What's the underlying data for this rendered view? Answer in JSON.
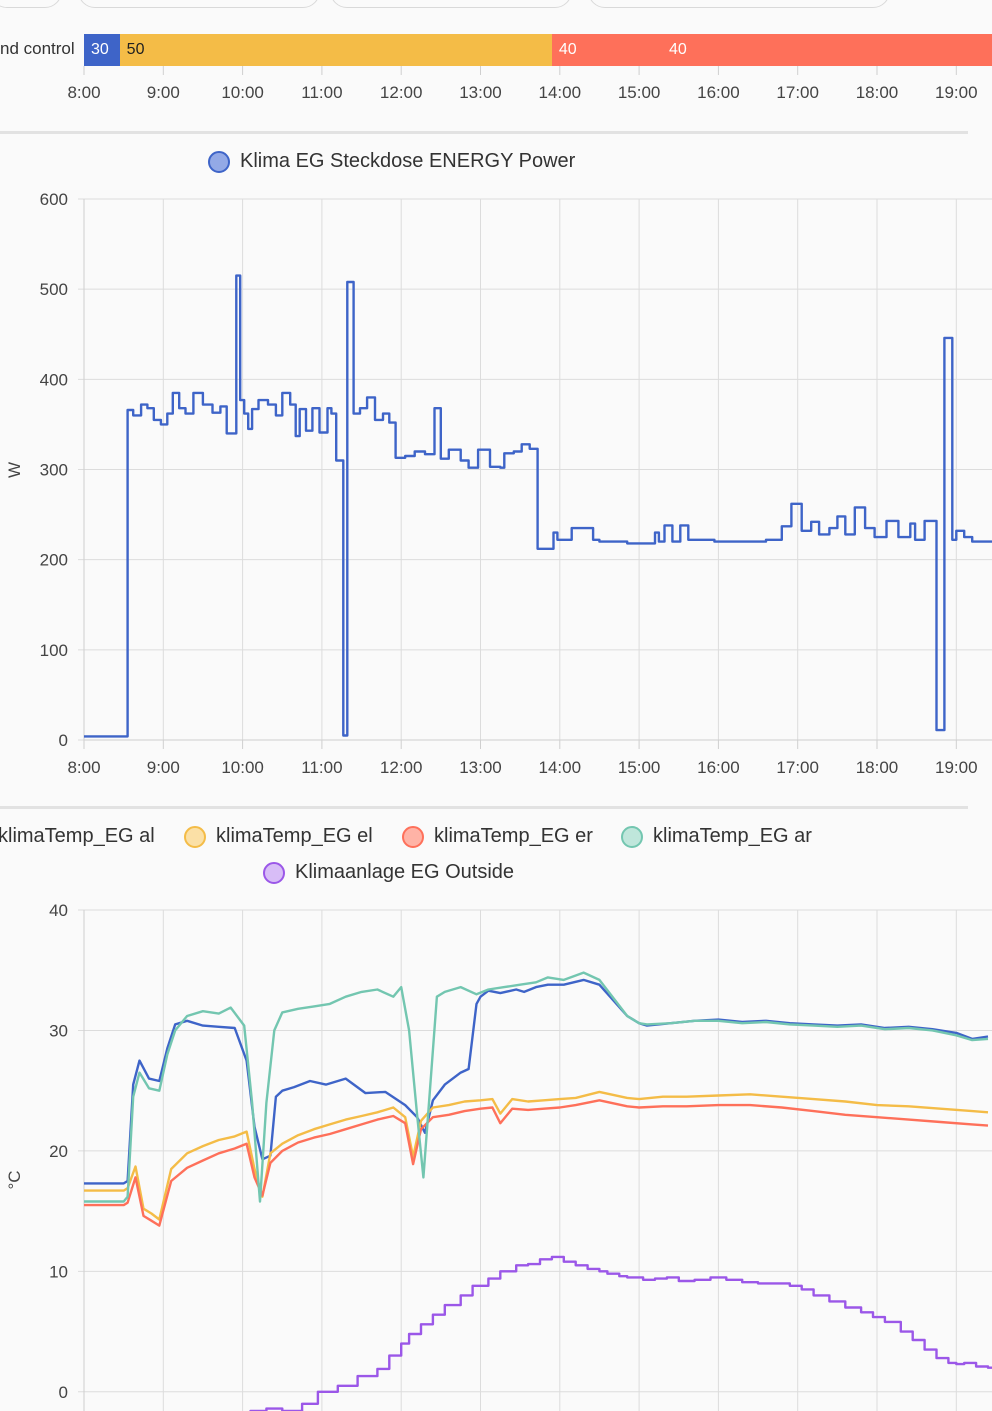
{
  "timeline": {
    "row_label": "nd control",
    "segments": [
      {
        "label": "30",
        "color": "#3e64c8",
        "text_color": "#ffffff",
        "start": "8:00",
        "end": "8:27"
      },
      {
        "label": "50",
        "color": "#f4bc47",
        "text_color": "#212121",
        "start": "8:27",
        "end": "13:54"
      },
      {
        "label": "40",
        "color": "#fe705a",
        "text_color": "#ffffff",
        "start": "13:54",
        "end": "19:25"
      }
    ],
    "extra_label": "40",
    "x_ticks": [
      "8:00",
      "9:00",
      "10:00",
      "11:00",
      "12:00",
      "13:00",
      "14:00",
      "15:00",
      "16:00",
      "17:00",
      "18:00",
      "19:00"
    ]
  },
  "chart_data": [
    {
      "type": "line",
      "legend": [
        "Klima EG Steckdose ENERGY Power"
      ],
      "ylabel": "W",
      "x_ticks": [
        "8:00",
        "9:00",
        "10:00",
        "11:00",
        "12:00",
        "13:00",
        "14:00",
        "15:00",
        "16:00",
        "17:00",
        "18:00",
        "19:00"
      ],
      "y_ticks": [
        "0",
        "100",
        "200",
        "300",
        "400",
        "500",
        "600"
      ],
      "ylim": [
        0,
        600
      ],
      "xlim_hours": [
        8,
        19.4
      ],
      "grid": true,
      "series": [
        {
          "name": "Klima EG Steckdose ENERGY Power",
          "color": "#3e64c8",
          "step": true,
          "x_hours": [
            8.0,
            8.5,
            8.55,
            8.62,
            8.72,
            8.8,
            8.88,
            8.97,
            9.05,
            9.12,
            9.2,
            9.28,
            9.38,
            9.5,
            9.62,
            9.72,
            9.8,
            9.92,
            9.97,
            10.02,
            10.07,
            10.12,
            10.2,
            10.32,
            10.42,
            10.5,
            10.6,
            10.67,
            10.72,
            10.8,
            10.88,
            10.97,
            11.07,
            11.12,
            11.18,
            11.27,
            11.3,
            11.32,
            11.4,
            11.48,
            11.57,
            11.67,
            11.77,
            11.85,
            11.93,
            12.05,
            12.17,
            12.3,
            12.42,
            12.5,
            12.6,
            12.75,
            12.85,
            12.97,
            13.12,
            13.25,
            13.3,
            13.42,
            13.52,
            13.62,
            13.72,
            13.82,
            13.92,
            13.97,
            14.05,
            14.15,
            14.42,
            14.5,
            14.72,
            14.85,
            15.2,
            15.25,
            15.32,
            15.42,
            15.52,
            15.62,
            15.72,
            15.95,
            16.32,
            16.6,
            16.72,
            16.8,
            16.92,
            17.05,
            17.17,
            17.27,
            17.4,
            17.5,
            17.6,
            17.72,
            17.85,
            17.97,
            18.12,
            18.27,
            18.42,
            18.48,
            18.6,
            18.75,
            18.85,
            18.95,
            19.0,
            19.1,
            19.2
          ],
          "values": [
            4,
            4,
            366,
            360,
            372,
            368,
            355,
            350,
            362,
            385,
            368,
            362,
            385,
            372,
            363,
            370,
            340,
            515,
            377,
            362,
            345,
            367,
            377,
            372,
            360,
            385,
            372,
            337,
            367,
            343,
            368,
            341,
            368,
            362,
            310,
            5,
            5,
            508,
            362,
            368,
            380,
            355,
            362,
            352,
            313,
            315,
            320,
            317,
            368,
            312,
            322,
            310,
            302,
            322,
            303,
            302,
            318,
            320,
            328,
            323,
            212,
            212,
            230,
            222,
            222,
            235,
            222,
            220,
            220,
            218,
            230,
            220,
            238,
            220,
            238,
            222,
            222,
            220,
            220,
            222,
            222,
            237,
            262,
            232,
            242,
            228,
            235,
            248,
            228,
            258,
            235,
            225,
            243,
            225,
            240,
            222,
            243,
            11,
            446,
            222,
            232,
            225,
            220
          ]
        }
      ]
    },
    {
      "type": "line",
      "legend": [
        "klimaTemp_EG al",
        "klimaTemp_EG el",
        "klimaTemp_EG er",
        "klimaTemp_EG ar",
        "Klimaanlage EG Outside"
      ],
      "ylabel": "°C",
      "y_ticks": [
        "0",
        "10",
        "20",
        "30",
        "40"
      ],
      "ylim": [
        -5,
        40
      ],
      "xlim_hours": [
        8,
        19.4
      ],
      "grid": true,
      "series": [
        {
          "name": "klimaTemp_EG al",
          "color": "#3e64c8",
          "x_hours": [
            8.0,
            8.5,
            8.55,
            8.62,
            8.7,
            8.82,
            8.95,
            9.05,
            9.15,
            9.3,
            9.5,
            9.7,
            9.9,
            10.05,
            10.15,
            10.25,
            10.35,
            10.42,
            10.5,
            10.65,
            10.85,
            11.05,
            11.3,
            11.55,
            11.8,
            12.05,
            12.2,
            12.3,
            12.4,
            12.55,
            12.75,
            12.85,
            12.95,
            13.0,
            13.1,
            13.25,
            13.45,
            13.55,
            13.7,
            13.85,
            14.05,
            14.3,
            14.5,
            14.85,
            15.0,
            15.1,
            15.4,
            15.7,
            16.0,
            16.3,
            16.6,
            16.9,
            17.2,
            17.5,
            17.8,
            18.1,
            18.4,
            18.7,
            19.0,
            19.2,
            19.4
          ],
          "values": [
            17.3,
            17.3,
            17.5,
            25.5,
            27.5,
            26,
            25.8,
            28.5,
            30.5,
            30.8,
            30.4,
            30.3,
            30.2,
            27.5,
            22,
            19.3,
            19.6,
            24.5,
            25,
            25.3,
            25.8,
            25.5,
            26,
            24.8,
            24.9,
            23.8,
            22.8,
            21.5,
            24.2,
            25.5,
            26.5,
            26.8,
            32.2,
            32.8,
            33.3,
            33.1,
            33.4,
            33.2,
            33.6,
            33.8,
            33.8,
            34.2,
            33.8,
            31.2,
            30.6,
            30.4,
            30.6,
            30.8,
            30.9,
            30.7,
            30.8,
            30.6,
            30.5,
            30.4,
            30.5,
            30.2,
            30.3,
            30.1,
            29.8,
            29.3,
            29.5
          ]
        },
        {
          "name": "klimaTemp_EG el",
          "color": "#f4bc47",
          "x_hours": [
            8.0,
            8.5,
            8.55,
            8.65,
            8.75,
            8.85,
            8.95,
            9.1,
            9.3,
            9.5,
            9.7,
            9.9,
            10.05,
            10.15,
            10.25,
            10.35,
            10.5,
            10.7,
            10.9,
            11.1,
            11.3,
            11.5,
            11.7,
            11.9,
            12.05,
            12.15,
            12.25,
            12.4,
            12.6,
            12.8,
            13.0,
            13.15,
            13.25,
            13.4,
            13.6,
            13.8,
            14.0,
            14.2,
            14.5,
            14.85,
            15.0,
            15.3,
            15.6,
            16.0,
            16.4,
            16.8,
            17.2,
            17.6,
            18.0,
            18.4,
            18.8,
            19.2,
            19.4
          ],
          "values": [
            16.7,
            16.7,
            16.9,
            18.7,
            15.2,
            14.8,
            14.3,
            18.5,
            19.8,
            20.4,
            20.9,
            21.2,
            21.6,
            18.5,
            16.2,
            19.8,
            20.6,
            21.3,
            21.8,
            22.2,
            22.6,
            22.9,
            23.2,
            23.6,
            22.8,
            19.5,
            22.5,
            23.6,
            23.8,
            24.1,
            24.2,
            24.3,
            23.1,
            24.3,
            24.1,
            24.2,
            24.3,
            24.4,
            24.9,
            24.4,
            24.3,
            24.5,
            24.5,
            24.6,
            24.7,
            24.5,
            24.3,
            24.1,
            23.8,
            23.7,
            23.5,
            23.3,
            23.2
          ]
        },
        {
          "name": "klimaTemp_EG er",
          "color": "#fe705a",
          "x_hours": [
            8.0,
            8.5,
            8.55,
            8.65,
            8.75,
            8.85,
            8.95,
            9.1,
            9.3,
            9.5,
            9.7,
            9.9,
            10.05,
            10.15,
            10.25,
            10.35,
            10.5,
            10.7,
            10.9,
            11.1,
            11.3,
            11.5,
            11.7,
            11.9,
            12.05,
            12.15,
            12.25,
            12.4,
            12.6,
            12.8,
            13.0,
            13.15,
            13.25,
            13.4,
            13.6,
            13.8,
            14.0,
            14.2,
            14.5,
            14.85,
            15.0,
            15.3,
            15.6,
            16.0,
            16.4,
            16.8,
            17.2,
            17.6,
            18.0,
            18.4,
            18.8,
            19.2,
            19.4
          ],
          "values": [
            15.5,
            15.5,
            15.7,
            17.8,
            14.6,
            14.2,
            13.8,
            17.5,
            18.6,
            19.2,
            19.8,
            20.2,
            20.6,
            17.8,
            16.3,
            19.0,
            20.0,
            20.7,
            21.1,
            21.4,
            21.8,
            22.2,
            22.6,
            22.9,
            22.3,
            18.9,
            21.8,
            22.8,
            23.0,
            23.3,
            23.5,
            23.6,
            22.3,
            23.5,
            23.4,
            23.5,
            23.6,
            23.8,
            24.2,
            23.7,
            23.6,
            23.7,
            23.7,
            23.8,
            23.8,
            23.6,
            23.3,
            23.0,
            22.8,
            22.6,
            22.4,
            22.2,
            22.1
          ]
        },
        {
          "name": "klimaTemp_EG ar",
          "color": "#73c6b0",
          "x_hours": [
            8.0,
            8.5,
            8.55,
            8.62,
            8.7,
            8.82,
            8.95,
            9.05,
            9.15,
            9.3,
            9.5,
            9.7,
            9.85,
            10.02,
            10.12,
            10.22,
            10.3,
            10.4,
            10.5,
            10.7,
            10.9,
            11.1,
            11.3,
            11.5,
            11.7,
            11.9,
            12.0,
            12.1,
            12.2,
            12.28,
            12.35,
            12.45,
            12.55,
            12.75,
            12.95,
            13.1,
            13.3,
            13.5,
            13.7,
            13.85,
            14.05,
            14.3,
            14.5,
            14.85,
            15.0,
            15.1,
            15.4,
            15.7,
            16.0,
            16.3,
            16.6,
            16.9,
            17.2,
            17.5,
            17.8,
            18.1,
            18.4,
            18.7,
            19.0,
            19.2,
            19.4
          ],
          "values": [
            15.8,
            15.8,
            16.2,
            24.5,
            26.5,
            25.2,
            25.0,
            28.0,
            30.0,
            31.2,
            31.6,
            31.4,
            31.9,
            30.4,
            24,
            15.8,
            24,
            30,
            31.5,
            31.8,
            32.0,
            32.2,
            32.8,
            33.2,
            33.4,
            32.8,
            33.6,
            30,
            23,
            17.8,
            24,
            32.8,
            33.2,
            33.6,
            33.0,
            33.4,
            33.6,
            33.8,
            34.0,
            34.4,
            34.2,
            34.8,
            34.2,
            31.2,
            30.6,
            30.5,
            30.6,
            30.8,
            30.8,
            30.6,
            30.7,
            30.5,
            30.4,
            30.3,
            30.4,
            30.1,
            30.2,
            30.0,
            29.6,
            29.2,
            29.3
          ]
        },
        {
          "name": "Klimaanlage EG Outside",
          "color": "#9b57e8",
          "step": true,
          "x_hours": [
            8.0,
            8.3,
            8.6,
            8.75,
            9.0,
            9.3,
            9.55,
            9.7,
            9.95,
            10.1,
            10.3,
            10.5,
            10.75,
            10.95,
            11.2,
            11.45,
            11.7,
            11.85,
            12.0,
            12.1,
            12.25,
            12.4,
            12.55,
            12.75,
            12.9,
            13.1,
            13.25,
            13.45,
            13.6,
            13.75,
            13.9,
            14.05,
            14.2,
            14.35,
            14.5,
            14.6,
            14.75,
            14.85,
            15.05,
            15.2,
            15.35,
            15.5,
            15.7,
            15.9,
            16.1,
            16.3,
            16.5,
            16.7,
            16.9,
            17.05,
            17.2,
            17.4,
            17.6,
            17.8,
            17.95,
            18.1,
            18.3,
            18.45,
            18.6,
            18.75,
            18.9,
            19.0,
            19.1,
            19.25,
            19.4
          ],
          "values": [
            -2.7,
            -2.7,
            -2.9,
            -2.7,
            -2.6,
            -2.5,
            -2.5,
            -2.2,
            -1.8,
            -1.6,
            -1.4,
            -1.6,
            -1.0,
            0.0,
            0.5,
            1.3,
            1.9,
            3.0,
            4.0,
            4.8,
            5.6,
            6.4,
            7.2,
            8.0,
            8.8,
            9.4,
            10.0,
            10.5,
            10.6,
            11.0,
            11.2,
            10.8,
            10.5,
            10.2,
            10.0,
            9.8,
            9.6,
            9.5,
            9.3,
            9.4,
            9.5,
            9.2,
            9.3,
            9.5,
            9.3,
            9.1,
            9.0,
            9.0,
            8.8,
            8.5,
            8.0,
            7.5,
            7.0,
            6.6,
            6.2,
            5.8,
            5.0,
            4.3,
            3.5,
            2.8,
            2.4,
            2.3,
            2.4,
            2.1,
            2.0
          ]
        }
      ]
    }
  ]
}
